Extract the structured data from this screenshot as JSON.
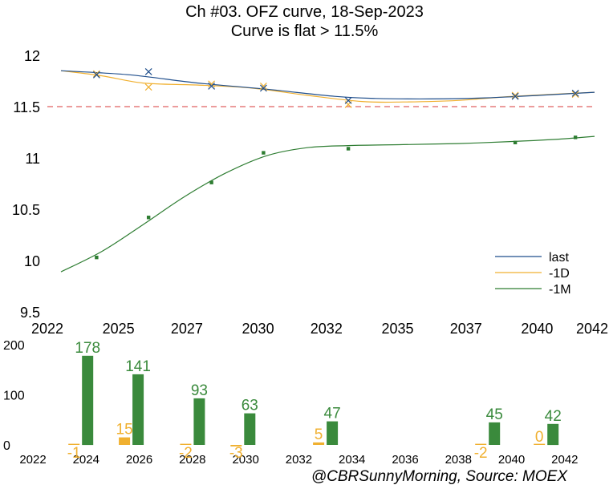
{
  "header": {
    "title": "Ch #03. OFZ curve, 18-Sep-2023",
    "subtitle": "Curve is flat > 11.5%"
  },
  "footer": {
    "credit": "@CBRSunnyMorning, Source: MOEX"
  },
  "colors": {
    "last": "#1f4e8c",
    "d1": "#f0b030",
    "m1": "#2e7d32",
    "bar_m1": "#3a8a3c",
    "threshold": "#e06060"
  },
  "chart_data": [
    {
      "type": "line",
      "title": "Ch #03. OFZ curve, 18-Sep-2023",
      "subtitle": "Curve is flat > 11.5%",
      "xlim": [
        2022,
        2042
      ],
      "ylim": [
        9.5,
        12
      ],
      "x_ticks": [
        2022,
        2024.6,
        2027.1,
        2029.7,
        2032.2,
        2034.8,
        2037.3,
        2039.9,
        2042.4
      ],
      "x_tick_labels": [
        "2022",
        "2025",
        "2027",
        "2030",
        "2032",
        "2035",
        "2037",
        "2040",
        "2042"
      ],
      "y_ticks": [
        9.5,
        10,
        10.5,
        11,
        11.5,
        12
      ],
      "y_tick_labels": [
        "9.5",
        "10",
        "10.5",
        "11",
        "11.5",
        "12"
      ],
      "threshold": 11.5,
      "grid": false,
      "legend_position": "bottom-right",
      "series": [
        {
          "name": "last",
          "color": "#1f4e8c",
          "marker": "x",
          "points": [
            [
              2023.8,
              11.81
            ],
            [
              2025.7,
              11.84
            ],
            [
              2028.0,
              11.7
            ],
            [
              2029.9,
              11.68
            ],
            [
              2033.0,
              11.56
            ],
            [
              2039.1,
              11.6
            ],
            [
              2041.3,
              11.63
            ]
          ],
          "curve": [
            [
              2022.5,
              11.85
            ],
            [
              2025.0,
              11.81
            ],
            [
              2027.5,
              11.73
            ],
            [
              2030.0,
              11.67
            ],
            [
              2032.5,
              11.6
            ],
            [
              2034.0,
              11.58
            ],
            [
              2036.0,
              11.575
            ],
            [
              2038.0,
              11.585
            ],
            [
              2040.0,
              11.61
            ],
            [
              2042.0,
              11.64
            ]
          ]
        },
        {
          "name": "-1D",
          "color": "#f0b030",
          "marker": "x",
          "points": [
            [
              2023.8,
              11.82
            ],
            [
              2025.7,
              11.69
            ],
            [
              2028.0,
              11.72
            ],
            [
              2029.9,
              11.7
            ],
            [
              2033.0,
              11.52
            ],
            [
              2039.1,
              11.61
            ],
            [
              2041.3,
              11.62
            ]
          ],
          "curve": [
            [
              2022.5,
              11.85
            ],
            [
              2024.0,
              11.8
            ],
            [
              2025.5,
              11.73
            ],
            [
              2027.5,
              11.71
            ],
            [
              2029.5,
              11.68
            ],
            [
              2031.5,
              11.61
            ],
            [
              2033.5,
              11.55
            ],
            [
              2035.0,
              11.545
            ],
            [
              2037.0,
              11.56
            ],
            [
              2039.0,
              11.6
            ],
            [
              2042.0,
              11.64
            ]
          ]
        },
        {
          "name": "-1M",
          "color": "#2e7d32",
          "marker": "square",
          "points": [
            [
              2023.8,
              10.03
            ],
            [
              2025.7,
              10.42
            ],
            [
              2028.0,
              10.76
            ],
            [
              2029.9,
              11.05
            ],
            [
              2033.0,
              11.09
            ],
            [
              2039.1,
              11.15
            ],
            [
              2041.3,
              11.2
            ]
          ],
          "curve": [
            [
              2022.5,
              9.89
            ],
            [
              2024.0,
              10.09
            ],
            [
              2025.5,
              10.35
            ],
            [
              2027.0,
              10.62
            ],
            [
              2028.5,
              10.85
            ],
            [
              2030.0,
              11.02
            ],
            [
              2031.5,
              11.1
            ],
            [
              2033.0,
              11.12
            ],
            [
              2035.0,
              11.13
            ],
            [
              2037.0,
              11.14
            ],
            [
              2039.0,
              11.16
            ],
            [
              2040.5,
              11.18
            ],
            [
              2042.0,
              11.21
            ]
          ]
        }
      ]
    },
    {
      "type": "bar",
      "xlim": [
        2022,
        2043
      ],
      "ylim": [
        0,
        200
      ],
      "x_ticks": [
        2022,
        2024,
        2026,
        2028,
        2030,
        2032,
        2034,
        2036,
        2038,
        2040,
        2042
      ],
      "x_tick_labels": [
        "2022",
        "2024",
        "2026",
        "2028",
        "2030",
        "2032",
        "2034",
        "2036",
        "2038",
        "2040",
        "2042"
      ],
      "y_ticks": [
        0,
        100,
        200
      ],
      "y_tick_labels": [
        "0",
        "100",
        "200"
      ],
      "grid": false,
      "categories": [
        2023.8,
        2025.7,
        2028.0,
        2029.9,
        2033.0,
        2039.1,
        2041.3
      ],
      "series": [
        {
          "name": "-1D",
          "color": "#f0b030",
          "values": [
            -1,
            15,
            -2,
            -3,
            5,
            -2,
            0
          ],
          "labels": [
            "-1",
            "15",
            "-2",
            "-3",
            "5",
            "-2",
            "0"
          ]
        },
        {
          "name": "-1M",
          "color": "#3a8a3c",
          "values": [
            178,
            141,
            93,
            63,
            47,
            45,
            42
          ],
          "labels": [
            "178",
            "141",
            "93",
            "63",
            "47",
            "45",
            "42"
          ]
        }
      ]
    }
  ]
}
